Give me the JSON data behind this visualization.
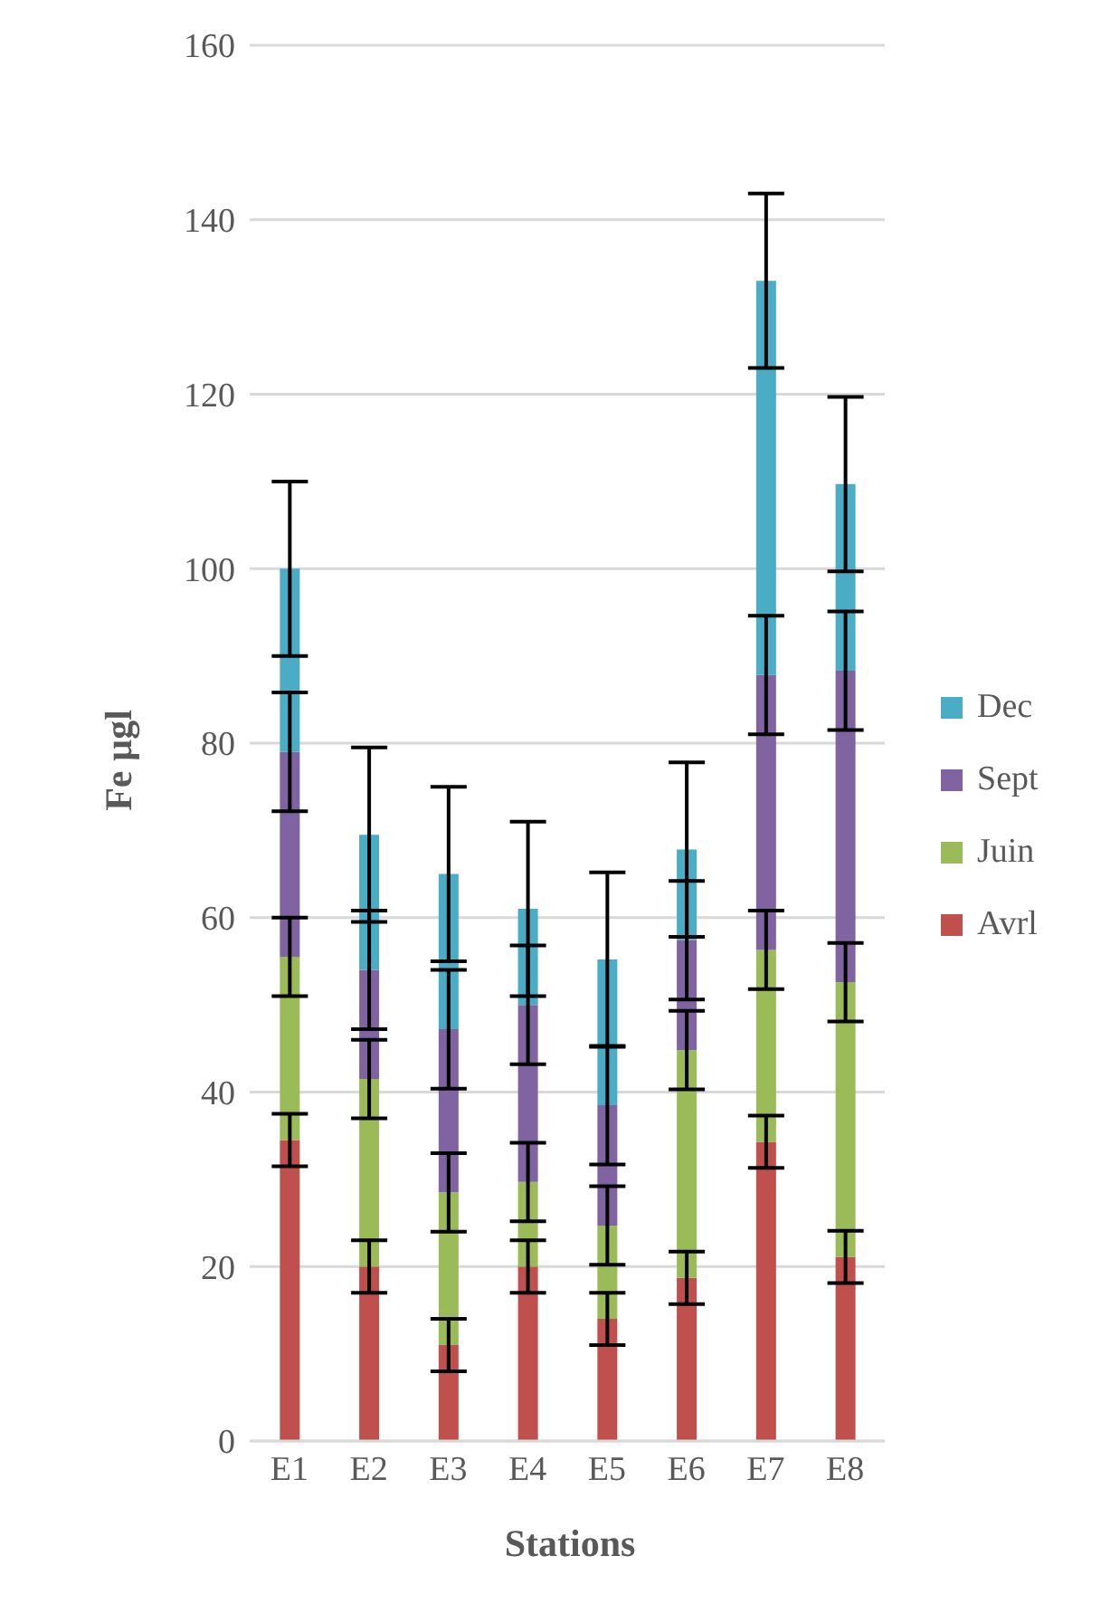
{
  "chart_data": {
    "type": "bar",
    "stacked": true,
    "xlabel": "Stations",
    "ylabel": "Fe µgl",
    "categories": [
      "E1",
      "E2",
      "E3",
      "E4",
      "E5",
      "E6",
      "E7",
      "E8"
    ],
    "series": [
      {
        "name": "Avrl",
        "color": "#c0504d",
        "values": [
          34.5,
          20,
          11,
          20,
          14,
          18.7,
          34.3,
          21.1
        ],
        "errors": [
          3,
          3,
          3,
          3,
          3,
          3,
          3,
          3
        ]
      },
      {
        "name": "Juin",
        "color": "#9bbb59",
        "values": [
          21,
          21.5,
          17.5,
          9.7,
          10.7,
          26.1,
          22,
          31.5
        ],
        "errors": [
          4.5,
          4.5,
          4.5,
          4.5,
          4.5,
          4.5,
          4.5,
          4.5
        ]
      },
      {
        "name": "Sept",
        "color": "#8064a2",
        "values": [
          23.5,
          12.5,
          18.7,
          20.3,
          13.8,
          12.6,
          31.5,
          35.7
        ],
        "errors": [
          6.8,
          6.8,
          6.8,
          6.8,
          6.8,
          6.8,
          6.8,
          6.8
        ]
      },
      {
        "name": "Dec",
        "color": "#4bacc6",
        "values": [
          21,
          15.5,
          17.8,
          11,
          16.7,
          10.4,
          45.2,
          21.4
        ],
        "errors": [
          10,
          10,
          10,
          10,
          10,
          10,
          10,
          10
        ]
      }
    ],
    "ylim": [
      0,
      160
    ],
    "yticks": [
      0,
      20,
      40,
      60,
      80,
      100,
      120,
      140,
      160
    ],
    "grid": "y",
    "legend": "right"
  }
}
